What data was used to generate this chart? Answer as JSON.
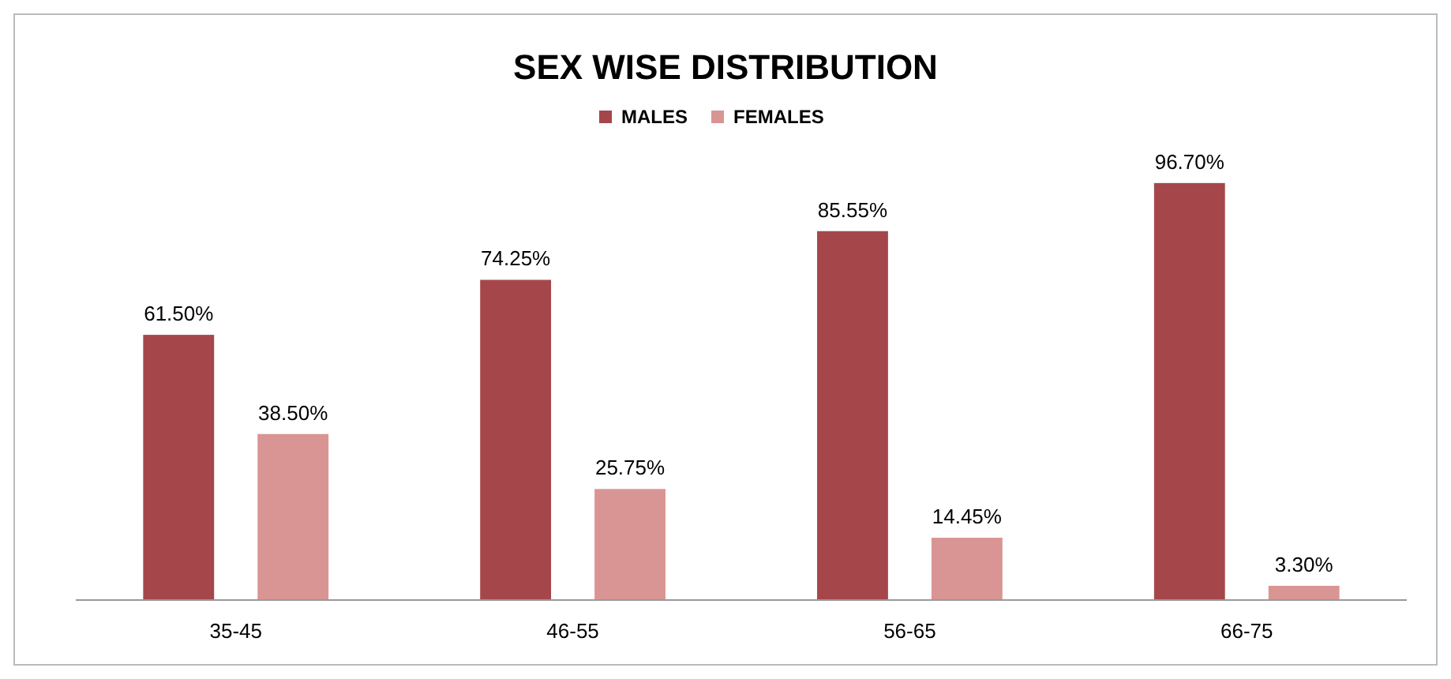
{
  "chart_data": {
    "type": "bar",
    "title": "SEX WISE DISTRIBUTION",
    "categories": [
      "35-45",
      "46-55",
      "56-65",
      "66-75"
    ],
    "series": [
      {
        "name": "MALES",
        "color": "#a5474a",
        "values": [
          61.5,
          74.25,
          85.55,
          96.7
        ],
        "value_labels": [
          "61.50%",
          "74.25%",
          "85.55%",
          "96.70%"
        ]
      },
      {
        "name": "FEMALES",
        "color": "#d89593",
        "values": [
          38.5,
          25.75,
          14.45,
          3.3
        ],
        "value_labels": [
          "38.50%",
          "25.75%",
          "14.45%",
          "3.30%"
        ]
      }
    ],
    "legend": "top"
  }
}
